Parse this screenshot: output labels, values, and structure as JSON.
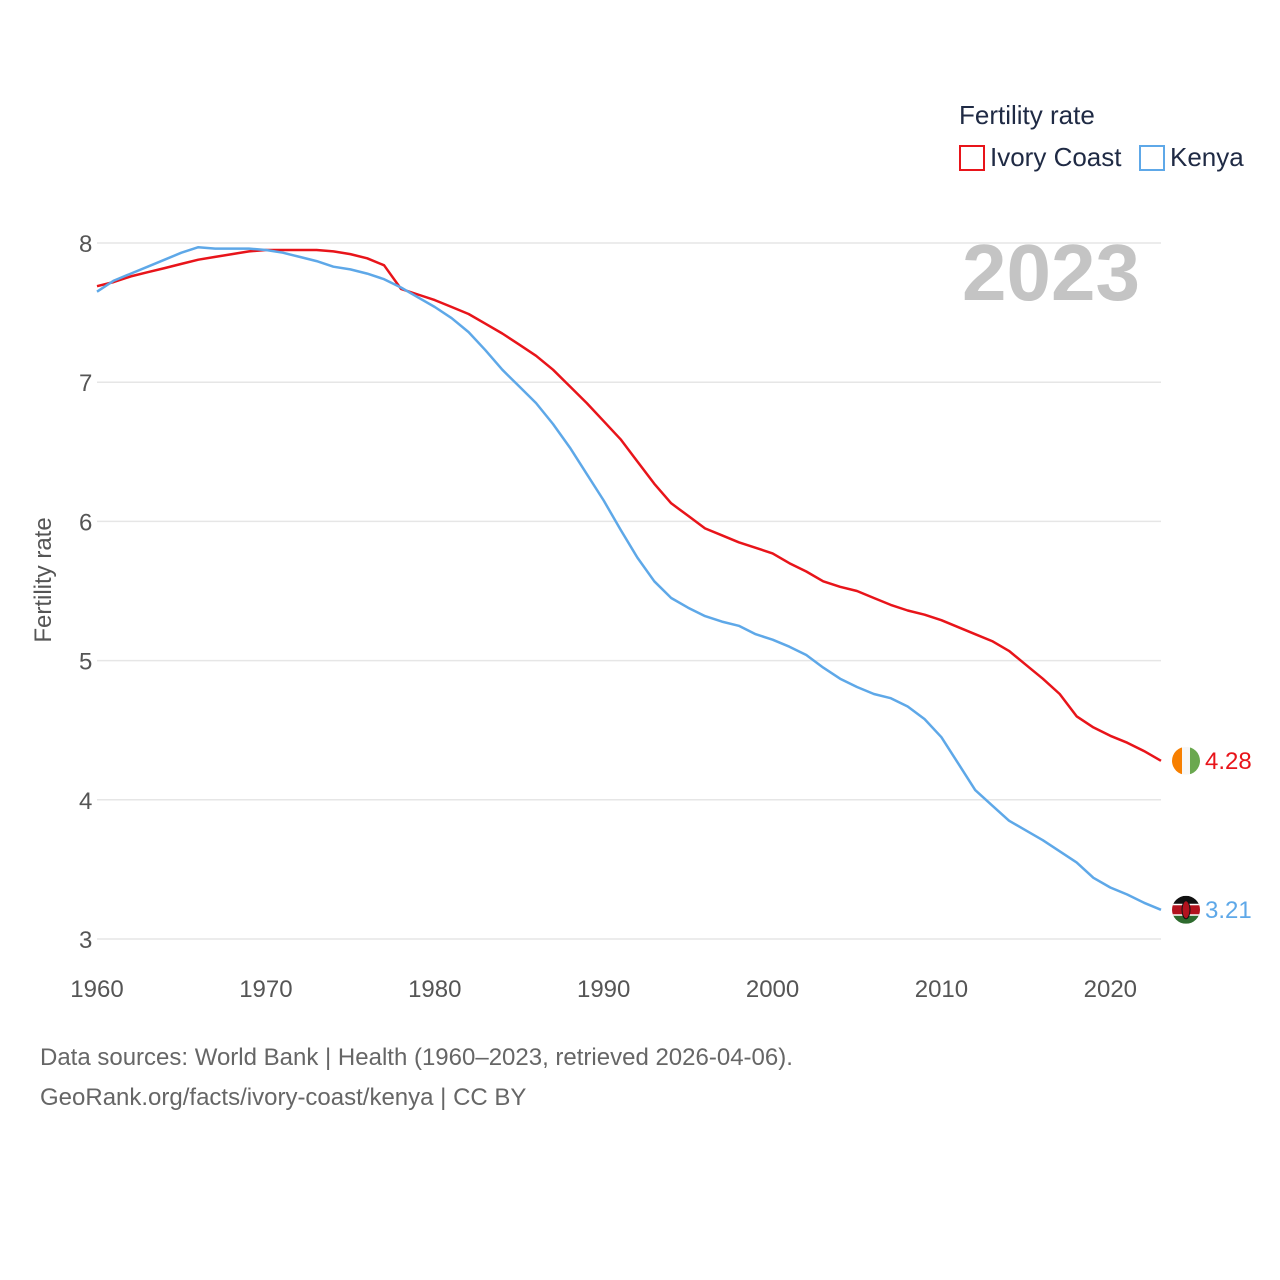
{
  "chart_data": {
    "type": "line",
    "title": "",
    "xlabel": "",
    "ylabel": "Fertility rate",
    "xlim": [
      1960,
      2023
    ],
    "ylim": [
      3,
      8
    ],
    "x_ticks": [
      1960,
      1970,
      1980,
      1990,
      2000,
      2010,
      2020
    ],
    "y_ticks": [
      3,
      4,
      5,
      6,
      7,
      8
    ],
    "year_label": "2023",
    "legend": {
      "title": "Fertility rate",
      "position": "top-right"
    },
    "x": [
      1960,
      1961,
      1962,
      1963,
      1964,
      1965,
      1966,
      1967,
      1968,
      1969,
      1970,
      1971,
      1972,
      1973,
      1974,
      1975,
      1976,
      1977,
      1978,
      1979,
      1980,
      1981,
      1982,
      1983,
      1984,
      1985,
      1986,
      1987,
      1988,
      1989,
      1990,
      1991,
      1992,
      1993,
      1994,
      1995,
      1996,
      1997,
      1998,
      1999,
      2000,
      2001,
      2002,
      2003,
      2004,
      2005,
      2006,
      2007,
      2008,
      2009,
      2010,
      2011,
      2012,
      2013,
      2014,
      2015,
      2016,
      2017,
      2018,
      2019,
      2020,
      2021,
      2022,
      2023
    ],
    "series": [
      {
        "name": "Ivory Coast",
        "color": "#e8141a",
        "end_label": "4.28",
        "flag": "ivory-coast-flag",
        "values": [
          7.69,
          7.72,
          7.76,
          7.79,
          7.82,
          7.85,
          7.88,
          7.9,
          7.92,
          7.94,
          7.95,
          7.95,
          7.95,
          7.95,
          7.94,
          7.92,
          7.89,
          7.84,
          7.67,
          7.63,
          7.59,
          7.54,
          7.49,
          7.42,
          7.35,
          7.27,
          7.19,
          7.09,
          6.97,
          6.85,
          6.72,
          6.59,
          6.43,
          6.27,
          6.13,
          6.04,
          5.95,
          5.9,
          5.85,
          5.81,
          5.77,
          5.7,
          5.64,
          5.57,
          5.53,
          5.5,
          5.45,
          5.4,
          5.36,
          5.33,
          5.29,
          5.24,
          5.19,
          5.14,
          5.07,
          4.97,
          4.87,
          4.76,
          4.6,
          4.52,
          4.46,
          4.41,
          4.35,
          4.28
        ]
      },
      {
        "name": "Kenya",
        "color": "#5ea8e8",
        "end_label": "3.21",
        "flag": "kenya-flag",
        "values": [
          7.65,
          7.73,
          7.78,
          7.83,
          7.88,
          7.93,
          7.97,
          7.96,
          7.96,
          7.96,
          7.95,
          7.93,
          7.9,
          7.87,
          7.83,
          7.81,
          7.78,
          7.74,
          7.68,
          7.61,
          7.54,
          7.46,
          7.36,
          7.23,
          7.09,
          6.97,
          6.85,
          6.7,
          6.53,
          6.34,
          6.15,
          5.94,
          5.74,
          5.57,
          5.45,
          5.38,
          5.32,
          5.28,
          5.25,
          5.19,
          5.15,
          5.1,
          5.04,
          4.95,
          4.87,
          4.81,
          4.76,
          4.73,
          4.67,
          4.58,
          4.45,
          4.26,
          4.07,
          3.96,
          3.85,
          3.78,
          3.71,
          3.63,
          3.55,
          3.44,
          3.37,
          3.32,
          3.26,
          3.21
        ]
      }
    ]
  },
  "footer": {
    "line1": "Data sources: World Bank | Health (1960–2023, retrieved 2026-04-06).",
    "line2": "GeoRank.org/facts/ivory-coast/kenya | CC BY"
  }
}
